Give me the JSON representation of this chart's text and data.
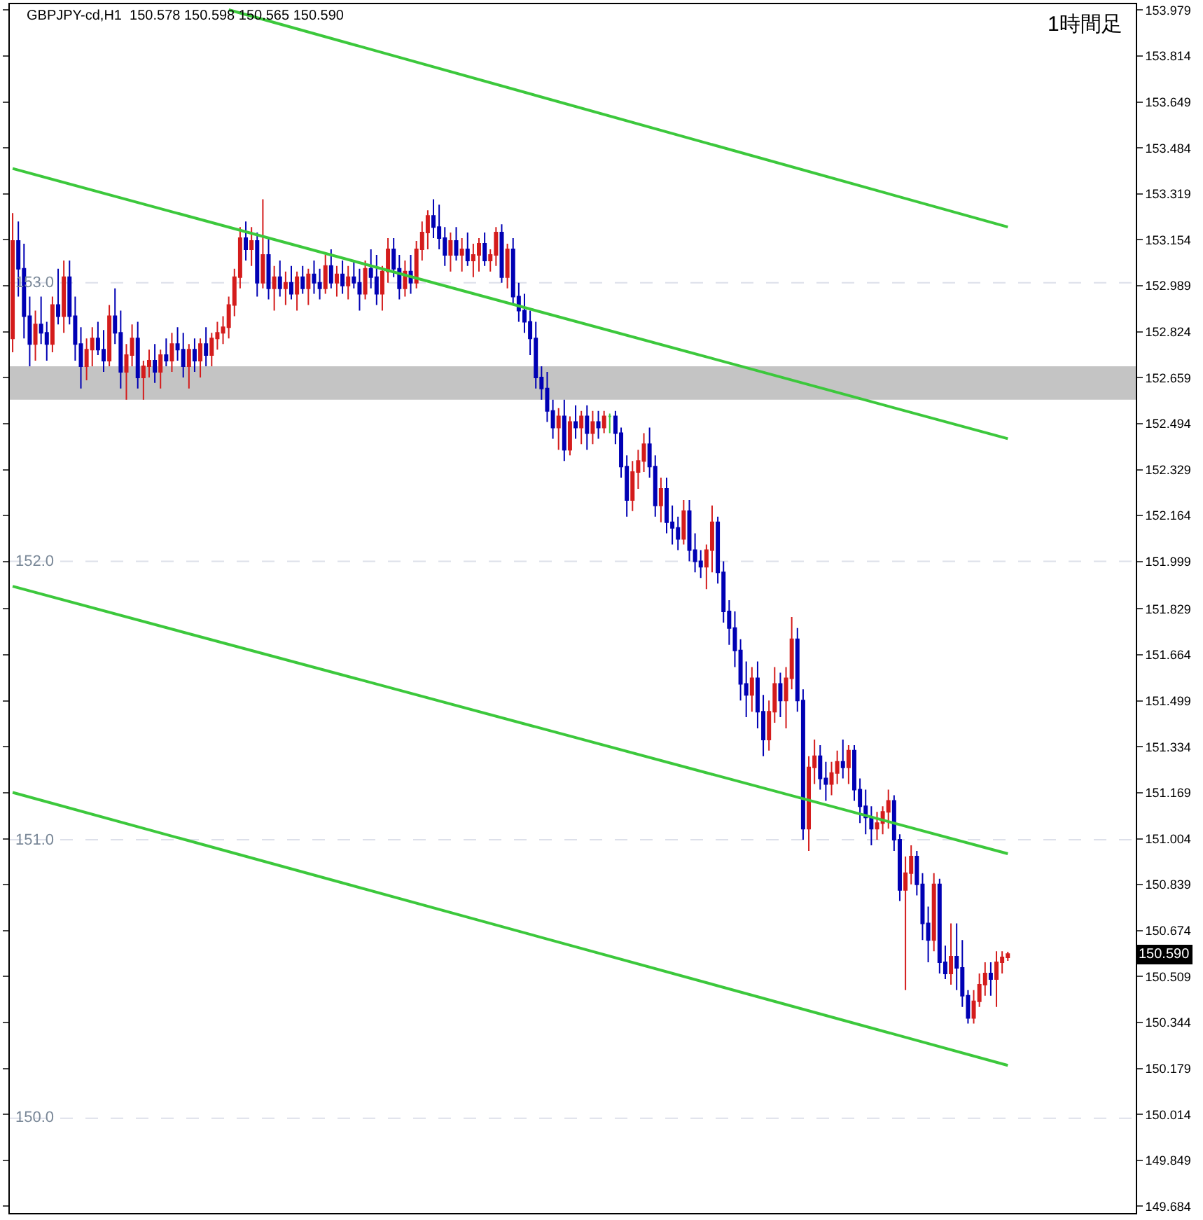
{
  "chart_data": {
    "type": "candlestick",
    "title": "GBPJPY-cd,H1  150.578 150.598 150.565 150.590",
    "subtitle": "1時間足",
    "categories": [
      null,
      null,
      null,
      null,
      null,
      null,
      null,
      null,
      null,
      null,
      null,
      null,
      null,
      null,
      null,
      null,
      null,
      null,
      null,
      null,
      null,
      null,
      null,
      null,
      null,
      null,
      null,
      null,
      null,
      null,
      null,
      null,
      null,
      null,
      null,
      null,
      null,
      null,
      null,
      null,
      null,
      null,
      null,
      null,
      null,
      null,
      null,
      null,
      null,
      null,
      null,
      null,
      null,
      null,
      null,
      null,
      null,
      null,
      null,
      null,
      null,
      null,
      null,
      null,
      null,
      null,
      null,
      null,
      null,
      null,
      null,
      null,
      null,
      null,
      null,
      null,
      null,
      null,
      null,
      null,
      null,
      null,
      null,
      null,
      null,
      null,
      null,
      null,
      null,
      null,
      null,
      null,
      null,
      null,
      null,
      null,
      null,
      null,
      null,
      null,
      null,
      null,
      null,
      null,
      null,
      null,
      null,
      null,
      null,
      null,
      null,
      null,
      null,
      null,
      null,
      null,
      null,
      null,
      null,
      null,
      null,
      null,
      null,
      null,
      null,
      null,
      null,
      null,
      null,
      null,
      null,
      null,
      null,
      null,
      null,
      null,
      null,
      null,
      null,
      null,
      null,
      null,
      null,
      null,
      null,
      null,
      null,
      null,
      null,
      null,
      null,
      null,
      null,
      null,
      null,
      null,
      null,
      null,
      null,
      null,
      null,
      null,
      null,
      null,
      null,
      null,
      null,
      null,
      null,
      null,
      null,
      null,
      null,
      null,
      null,
      null,
      null,
      null,
      null,
      null,
      null,
      null,
      null,
      null,
      null,
      null,
      null,
      null,
      null,
      null,
      null,
      null,
      null,
      null,
      null,
      null,
      null,
      null
    ],
    "ohlc": [
      [
        152.8,
        153.25,
        152.75,
        153.15
      ],
      [
        153.15,
        153.22,
        152.95,
        153.05
      ],
      [
        153.05,
        153.14,
        152.8,
        152.88
      ],
      [
        152.88,
        152.95,
        152.7,
        152.78
      ],
      [
        152.78,
        152.9,
        152.72,
        152.85
      ],
      [
        152.85,
        152.95,
        152.78,
        152.82
      ],
      [
        152.82,
        152.86,
        152.72,
        152.78
      ],
      [
        152.78,
        152.95,
        152.75,
        152.92
      ],
      [
        152.92,
        153.05,
        152.85,
        152.88
      ],
      [
        152.88,
        153.08,
        152.82,
        153.02
      ],
      [
        153.02,
        153.08,
        152.85,
        152.88
      ],
      [
        152.88,
        152.95,
        152.72,
        152.78
      ],
      [
        152.78,
        152.84,
        152.62,
        152.7
      ],
      [
        152.7,
        152.8,
        152.65,
        152.76
      ],
      [
        152.76,
        152.84,
        152.7,
        152.8
      ],
      [
        152.8,
        152.86,
        152.74,
        152.76
      ],
      [
        152.76,
        152.83,
        152.68,
        152.72
      ],
      [
        152.72,
        152.92,
        152.7,
        152.88
      ],
      [
        152.88,
        152.98,
        152.78,
        152.82
      ],
      [
        152.82,
        152.9,
        152.62,
        152.68
      ],
      [
        152.68,
        152.78,
        152.58,
        152.74
      ],
      [
        152.74,
        152.85,
        152.7,
        152.8
      ],
      [
        152.8,
        152.86,
        152.62,
        152.66
      ],
      [
        152.66,
        152.72,
        152.58,
        152.7
      ],
      [
        152.7,
        152.76,
        152.66,
        152.72
      ],
      [
        152.72,
        152.78,
        152.64,
        152.68
      ],
      [
        152.68,
        152.76,
        152.62,
        152.74
      ],
      [
        152.74,
        152.8,
        152.7,
        152.72
      ],
      [
        152.72,
        152.82,
        152.68,
        152.78
      ],
      [
        152.78,
        152.84,
        152.72,
        152.76
      ],
      [
        152.76,
        152.82,
        152.66,
        152.7
      ],
      [
        152.7,
        152.78,
        152.62,
        152.76
      ],
      [
        152.76,
        152.8,
        152.68,
        152.72
      ],
      [
        152.72,
        152.8,
        152.66,
        152.78
      ],
      [
        152.78,
        152.84,
        152.7,
        152.74
      ],
      [
        152.74,
        152.82,
        152.7,
        152.8
      ],
      [
        152.8,
        152.86,
        152.76,
        152.82
      ],
      [
        152.82,
        152.88,
        152.78,
        152.84
      ],
      [
        152.84,
        152.95,
        152.8,
        152.92
      ],
      [
        152.92,
        153.05,
        152.88,
        153.02
      ],
      [
        153.02,
        153.2,
        152.98,
        153.16
      ],
      [
        153.16,
        153.22,
        153.08,
        153.12
      ],
      [
        153.12,
        153.2,
        153.06,
        153.15
      ],
      [
        153.15,
        153.18,
        152.95,
        153.0
      ],
      [
        153.0,
        153.3,
        152.98,
        153.1
      ],
      [
        153.1,
        153.16,
        152.94,
        152.98
      ],
      [
        152.98,
        153.06,
        152.9,
        153.02
      ],
      [
        153.02,
        153.08,
        152.95,
        152.98
      ],
      [
        152.98,
        153.04,
        152.92,
        153.0
      ],
      [
        153.0,
        153.06,
        152.94,
        152.96
      ],
      [
        152.96,
        153.04,
        152.9,
        153.02
      ],
      [
        153.02,
        153.06,
        152.96,
        152.98
      ],
      [
        152.98,
        153.05,
        152.92,
        153.03
      ],
      [
        153.03,
        153.08,
        152.96,
        153.0
      ],
      [
        153.0,
        153.05,
        152.94,
        152.98
      ],
      [
        152.98,
        153.1,
        152.96,
        153.06
      ],
      [
        153.06,
        153.12,
        152.98,
        153.0
      ],
      [
        153.0,
        153.06,
        152.95,
        153.03
      ],
      [
        153.03,
        153.08,
        152.96,
        152.99
      ],
      [
        152.99,
        153.06,
        152.94,
        153.02
      ],
      [
        153.02,
        153.08,
        152.98,
        153.0
      ],
      [
        153.0,
        153.05,
        152.9,
        152.96
      ],
      [
        152.96,
        153.08,
        152.94,
        153.05
      ],
      [
        153.05,
        153.12,
        152.98,
        153.02
      ],
      [
        153.02,
        153.1,
        152.92,
        152.96
      ],
      [
        152.96,
        153.06,
        152.9,
        153.04
      ],
      [
        153.04,
        153.16,
        153.0,
        153.12
      ],
      [
        153.12,
        153.16,
        153.02,
        153.05
      ],
      [
        153.05,
        153.1,
        152.94,
        152.98
      ],
      [
        152.98,
        153.08,
        152.95,
        153.04
      ],
      [
        153.04,
        153.1,
        152.96,
        153.0
      ],
      [
        153.0,
        153.15,
        152.98,
        153.12
      ],
      [
        153.12,
        153.22,
        153.08,
        153.18
      ],
      [
        153.18,
        153.26,
        153.12,
        153.24
      ],
      [
        153.24,
        153.3,
        153.16,
        153.2
      ],
      [
        153.2,
        153.28,
        153.12,
        153.16
      ],
      [
        153.16,
        153.2,
        153.06,
        153.1
      ],
      [
        153.1,
        153.18,
        153.04,
        153.15
      ],
      [
        153.15,
        153.2,
        153.08,
        153.1
      ],
      [
        153.1,
        153.16,
        153.04,
        153.12
      ],
      [
        153.12,
        153.18,
        153.06,
        153.08
      ],
      [
        153.08,
        153.14,
        153.02,
        153.1
      ],
      [
        153.1,
        153.16,
        153.04,
        153.14
      ],
      [
        153.14,
        153.18,
        153.06,
        153.08
      ],
      [
        153.08,
        153.12,
        153.04,
        153.1
      ],
      [
        153.1,
        153.2,
        153.06,
        153.18
      ],
      [
        153.18,
        153.21,
        153.0,
        153.02
      ],
      [
        153.02,
        153.14,
        152.98,
        153.12
      ],
      [
        153.12,
        153.16,
        152.92,
        152.95
      ],
      [
        152.95,
        153.0,
        152.86,
        152.9
      ],
      [
        152.9,
        152.96,
        152.82,
        152.86
      ],
      [
        152.86,
        152.9,
        152.74,
        152.8
      ],
      [
        152.8,
        152.86,
        152.62,
        152.66
      ],
      [
        152.66,
        152.7,
        152.58,
        152.62
      ],
      [
        152.62,
        152.68,
        152.5,
        152.54
      ],
      [
        152.54,
        152.58,
        152.44,
        152.48
      ],
      [
        152.48,
        152.55,
        152.4,
        152.52
      ],
      [
        152.52,
        152.58,
        152.36,
        152.4
      ],
      [
        152.4,
        152.52,
        152.38,
        152.5
      ],
      [
        152.5,
        152.56,
        152.44,
        152.48
      ],
      [
        152.48,
        152.54,
        152.42,
        152.52
      ],
      [
        152.52,
        152.56,
        152.4,
        152.46
      ],
      [
        152.46,
        152.54,
        152.42,
        152.5
      ],
      [
        152.5,
        152.54,
        152.44,
        152.48
      ],
      [
        152.48,
        152.54,
        152.46,
        152.52
      ],
      [
        152.52,
        152.53,
        152.46,
        152.52
      ],
      [
        152.52,
        152.54,
        152.42,
        152.46
      ],
      [
        152.46,
        152.48,
        152.3,
        152.34
      ],
      [
        152.34,
        152.38,
        152.16,
        152.22
      ],
      [
        152.22,
        152.36,
        152.18,
        152.32
      ],
      [
        152.32,
        152.4,
        152.26,
        152.36
      ],
      [
        152.36,
        152.46,
        152.32,
        152.42
      ],
      [
        152.42,
        152.48,
        152.3,
        152.34
      ],
      [
        152.34,
        152.38,
        152.16,
        152.2
      ],
      [
        152.2,
        152.3,
        152.14,
        152.26
      ],
      [
        152.26,
        152.3,
        152.1,
        152.14
      ],
      [
        152.14,
        152.2,
        152.06,
        152.12
      ],
      [
        152.12,
        152.16,
        152.04,
        152.08
      ],
      [
        152.08,
        152.22,
        152.06,
        152.18
      ],
      [
        152.18,
        152.22,
        152.0,
        152.04
      ],
      [
        152.04,
        152.1,
        151.96,
        152.0
      ],
      [
        152.0,
        152.04,
        151.94,
        151.98
      ],
      [
        151.98,
        152.06,
        151.9,
        152.04
      ],
      [
        152.04,
        152.2,
        151.96,
        152.14
      ],
      [
        152.14,
        152.16,
        151.92,
        151.96
      ],
      [
        151.96,
        152.0,
        151.78,
        151.82
      ],
      [
        151.82,
        151.86,
        151.7,
        151.76
      ],
      [
        151.76,
        151.82,
        151.62,
        151.68
      ],
      [
        151.68,
        151.72,
        151.5,
        151.56
      ],
      [
        151.56,
        151.64,
        151.44,
        151.52
      ],
      [
        151.52,
        151.62,
        151.46,
        151.58
      ],
      [
        151.58,
        151.64,
        151.4,
        151.46
      ],
      [
        151.46,
        151.52,
        151.3,
        151.36
      ],
      [
        151.36,
        151.5,
        151.32,
        151.46
      ],
      [
        151.46,
        151.62,
        151.42,
        151.56
      ],
      [
        151.56,
        151.6,
        151.44,
        151.5
      ],
      [
        151.5,
        151.62,
        151.4,
        151.58
      ],
      [
        151.58,
        151.8,
        151.54,
        151.72
      ],
      [
        151.72,
        151.76,
        151.46,
        151.5
      ],
      [
        151.5,
        151.54,
        151.0,
        151.04
      ],
      [
        151.04,
        151.3,
        150.96,
        151.26
      ],
      [
        151.26,
        151.36,
        151.2,
        151.3
      ],
      [
        151.3,
        151.34,
        151.18,
        151.22
      ],
      [
        151.22,
        151.28,
        151.14,
        151.2
      ],
      [
        151.2,
        151.28,
        151.16,
        151.24
      ],
      [
        151.24,
        151.32,
        151.2,
        151.28
      ],
      [
        151.28,
        151.36,
        151.22,
        151.26
      ],
      [
        151.26,
        151.34,
        151.2,
        151.32
      ],
      [
        151.32,
        151.34,
        151.14,
        151.18
      ],
      [
        151.18,
        151.22,
        151.06,
        151.12
      ],
      [
        151.12,
        151.18,
        151.02,
        151.08
      ],
      [
        151.08,
        151.12,
        150.98,
        151.04
      ],
      [
        151.04,
        151.1,
        151.0,
        151.06
      ],
      [
        151.06,
        151.12,
        151.02,
        151.1
      ],
      [
        151.1,
        151.18,
        151.04,
        151.14
      ],
      [
        151.14,
        151.16,
        150.96,
        151.0
      ],
      [
        151.0,
        151.02,
        150.78,
        150.82
      ],
      [
        150.82,
        150.94,
        150.46,
        150.88
      ],
      [
        150.88,
        150.98,
        150.84,
        150.94
      ],
      [
        150.94,
        150.96,
        150.8,
        150.84
      ],
      [
        150.84,
        150.88,
        150.64,
        150.7
      ],
      [
        150.7,
        150.76,
        150.56,
        150.64
      ],
      [
        150.64,
        150.88,
        150.6,
        150.84
      ],
      [
        150.84,
        150.86,
        150.52,
        150.56
      ],
      [
        150.56,
        150.62,
        150.5,
        150.52
      ],
      [
        150.52,
        150.7,
        150.48,
        150.58
      ],
      [
        150.58,
        150.7,
        150.46,
        150.54
      ],
      [
        150.54,
        150.64,
        150.4,
        150.44
      ],
      [
        150.44,
        150.46,
        150.34,
        150.36
      ],
      [
        150.36,
        150.46,
        150.34,
        150.42
      ],
      [
        150.42,
        150.52,
        150.4,
        150.48
      ],
      [
        150.48,
        150.56,
        150.44,
        150.52
      ],
      [
        150.52,
        150.56,
        150.44,
        150.5
      ],
      [
        150.5,
        150.6,
        150.4,
        150.56
      ],
      [
        150.56,
        150.6,
        150.52,
        150.578
      ],
      [
        150.578,
        150.598,
        150.565,
        150.59
      ],
      null,
      null,
      null,
      null,
      null,
      null,
      null,
      null,
      null,
      null,
      null,
      null,
      null,
      null,
      null,
      null,
      null,
      null,
      null,
      null,
      null,
      null
    ],
    "colors": [
      "#d41c1c",
      "#0000b4",
      "#0000b4",
      "#0000b4",
      "#d41c1c",
      "#0000b4",
      "#0000b4",
      "#d41c1c",
      "#0000b4",
      "#d41c1c",
      "#0000b4",
      "#0000b4",
      "#0000b4",
      "#d41c1c",
      "#d41c1c",
      "#0000b4",
      "#0000b4",
      "#d41c1c",
      "#0000b4",
      "#0000b4",
      "#d41c1c",
      "#d41c1c",
      "#0000b4",
      "#d41c1c",
      "#d41c1c",
      "#0000b4",
      "#d41c1c",
      "#0000b4",
      "#d41c1c",
      "#0000b4",
      "#0000b4",
      "#d41c1c",
      "#0000b4",
      "#d41c1c",
      "#0000b4",
      "#d41c1c",
      "#d41c1c",
      "#d41c1c",
      "#d41c1c",
      "#d41c1c",
      "#d41c1c",
      "#0000b4",
      "#d41c1c",
      "#0000b4",
      "#d41c1c",
      "#0000b4",
      "#d41c1c",
      "#0000b4",
      "#d41c1c",
      "#0000b4",
      "#d41c1c",
      "#0000b4",
      "#d41c1c",
      "#0000b4",
      "#0000b4",
      "#d41c1c",
      "#0000b4",
      "#d41c1c",
      "#0000b4",
      "#d41c1c",
      "#0000b4",
      "#0000b4",
      "#d41c1c",
      "#0000b4",
      "#0000b4",
      "#d41c1c",
      "#d41c1c",
      "#0000b4",
      "#0000b4",
      "#d41c1c",
      "#0000b4",
      "#d41c1c",
      "#d41c1c",
      "#d41c1c",
      "#0000b4",
      "#0000b4",
      "#0000b4",
      "#d41c1c",
      "#0000b4",
      "#d41c1c",
      "#0000b4",
      "#d41c1c",
      "#d41c1c",
      "#0000b4",
      "#d41c1c",
      "#d41c1c",
      "#0000b4",
      "#d41c1c",
      "#0000b4",
      "#0000b4",
      "#0000b4",
      "#0000b4",
      "#0000b4",
      "#0000b4",
      "#0000b4",
      "#0000b4",
      "#d41c1c",
      "#0000b4",
      "#d41c1c",
      "#0000b4",
      "#d41c1c",
      "#0000b4",
      "#d41c1c",
      "#0000b4",
      "#d41c1c",
      "#3cc83c",
      "#0000b4",
      "#0000b4",
      "#0000b4",
      "#d41c1c",
      "#d41c1c",
      "#d41c1c",
      "#0000b4",
      "#0000b4",
      "#d41c1c",
      "#0000b4",
      "#0000b4",
      "#0000b4",
      "#d41c1c",
      "#0000b4",
      "#0000b4",
      "#0000b4",
      "#d41c1c",
      "#d41c1c",
      "#0000b4",
      "#0000b4",
      "#0000b4",
      "#0000b4",
      "#0000b4",
      "#0000b4",
      "#d41c1c",
      "#0000b4",
      "#0000b4",
      "#d41c1c",
      "#d41c1c",
      "#0000b4",
      "#d41c1c",
      "#d41c1c",
      "#0000b4",
      "#0000b4",
      "#d41c1c",
      "#d41c1c",
      "#0000b4",
      "#0000b4",
      "#d41c1c",
      "#d41c1c",
      "#0000b4",
      "#d41c1c",
      "#0000b4",
      "#0000b4",
      "#0000b4",
      "#0000b4",
      "#d41c1c",
      "#d41c1c",
      "#d41c1c",
      "#0000b4",
      "#0000b4",
      "#d41c1c",
      "#d41c1c",
      "#0000b4",
      "#0000b4",
      "#0000b4",
      "#d41c1c",
      "#0000b4",
      "#0000b4",
      "#d41c1c",
      "#0000b4",
      "#0000b4",
      "#0000b4",
      "#d41c1c",
      "#d41c1c",
      "#d41c1c",
      "#0000b4",
      "#d41c1c",
      "#d41c1c",
      "#d41c1c",
      null,
      null,
      null,
      null,
      null,
      null,
      null,
      null,
      null,
      null,
      null,
      null,
      null,
      null,
      null,
      null,
      null,
      null,
      null,
      null,
      null,
      null
    ],
    "series": [
      {
        "type": "line",
        "color": "#3cc83c",
        "values": [
          null,
          null,
          null,
          null,
          null,
          null,
          null,
          null,
          null,
          null,
          null,
          null,
          null,
          null,
          null,
          null,
          null,
          null,
          null,
          null,
          null,
          null,
          null,
          null,
          null,
          null,
          null,
          null,
          null,
          null,
          null,
          null,
          null,
          null,
          null,
          null,
          null,
          null,
          153.98,
          null,
          null,
          null,
          null,
          null,
          null,
          null,
          null,
          null,
          null,
          null,
          null,
          null,
          null,
          null,
          null,
          null,
          null,
          null,
          null,
          null,
          null,
          null,
          null,
          null,
          null,
          null,
          null,
          null,
          null,
          null,
          null,
          null,
          null,
          null,
          null,
          null,
          null,
          null,
          null,
          null,
          null,
          null,
          null,
          null,
          null,
          null,
          null,
          null,
          null,
          null,
          null,
          null,
          null,
          null,
          null,
          null,
          null,
          null,
          null,
          null,
          null,
          null,
          null,
          null,
          null,
          null,
          null,
          null,
          null,
          null,
          null,
          null,
          null,
          null,
          null,
          null,
          null,
          null,
          null,
          null,
          null,
          null,
          null,
          null,
          null,
          null,
          null,
          null,
          null,
          null,
          null,
          null,
          null,
          null,
          null,
          null,
          null,
          null,
          null,
          null,
          null,
          null,
          null,
          null,
          null,
          null,
          null,
          null,
          null,
          null,
          null,
          null,
          null,
          null,
          null,
          null,
          null,
          null,
          null,
          null,
          null,
          null,
          null,
          null,
          null,
          null,
          null,
          null,
          null,
          null,
          null,
          null,
          null,
          null,
          null,
          153.2,
          null,
          null,
          null,
          null,
          null,
          null,
          null,
          null,
          null,
          null,
          null,
          null,
          null,
          null,
          null,
          null,
          null,
          null,
          null,
          null,
          null,
          null
        ]
      },
      {
        "type": "line",
        "color": "#3cc83c",
        "values": [
          153.41,
          null,
          null,
          null,
          null,
          null,
          null,
          null,
          null,
          null,
          null,
          null,
          null,
          null,
          null,
          null,
          null,
          null,
          null,
          null,
          null,
          null,
          null,
          null,
          null,
          null,
          null,
          null,
          null,
          null,
          null,
          null,
          null,
          null,
          null,
          null,
          null,
          null,
          null,
          null,
          null,
          null,
          null,
          null,
          null,
          null,
          null,
          null,
          null,
          null,
          null,
          null,
          null,
          null,
          null,
          null,
          null,
          null,
          null,
          null,
          null,
          null,
          null,
          null,
          null,
          null,
          null,
          null,
          null,
          null,
          null,
          null,
          null,
          null,
          null,
          null,
          null,
          null,
          null,
          null,
          null,
          null,
          null,
          null,
          null,
          null,
          null,
          null,
          null,
          null,
          null,
          null,
          null,
          null,
          null,
          null,
          null,
          null,
          null,
          null,
          null,
          null,
          null,
          null,
          null,
          null,
          null,
          null,
          null,
          null,
          null,
          null,
          null,
          null,
          null,
          null,
          null,
          null,
          null,
          null,
          null,
          null,
          null,
          null,
          null,
          null,
          null,
          null,
          null,
          null,
          null,
          null,
          null,
          null,
          null,
          null,
          null,
          null,
          null,
          null,
          null,
          null,
          null,
          null,
          null,
          null,
          null,
          null,
          null,
          null,
          null,
          null,
          null,
          null,
          null,
          null,
          null,
          null,
          null,
          null,
          null,
          null,
          null,
          null,
          null,
          null,
          null,
          null,
          null,
          null,
          null,
          null,
          null,
          null,
          null,
          152.44,
          null,
          null,
          null,
          null,
          null,
          null,
          null,
          null,
          null,
          null,
          null,
          null,
          null,
          null,
          null,
          null,
          null,
          null,
          null,
          null,
          null,
          null
        ]
      },
      {
        "type": "line",
        "color": "#3cc83c",
        "values": [
          151.91,
          null,
          null,
          null,
          null,
          null,
          null,
          null,
          null,
          null,
          null,
          null,
          null,
          null,
          null,
          null,
          null,
          null,
          null,
          null,
          null,
          null,
          null,
          null,
          null,
          null,
          null,
          null,
          null,
          null,
          null,
          null,
          null,
          null,
          null,
          null,
          null,
          null,
          null,
          null,
          null,
          null,
          null,
          null,
          null,
          null,
          null,
          null,
          null,
          null,
          null,
          null,
          null,
          null,
          null,
          null,
          null,
          null,
          null,
          null,
          null,
          null,
          null,
          null,
          null,
          null,
          null,
          null,
          null,
          null,
          null,
          null,
          null,
          null,
          null,
          null,
          null,
          null,
          null,
          null,
          null,
          null,
          null,
          null,
          null,
          null,
          null,
          null,
          null,
          null,
          null,
          null,
          null,
          null,
          null,
          null,
          null,
          null,
          null,
          null,
          null,
          null,
          null,
          null,
          null,
          null,
          null,
          null,
          null,
          null,
          null,
          null,
          null,
          null,
          null,
          null,
          null,
          null,
          null,
          null,
          null,
          null,
          null,
          null,
          null,
          null,
          null,
          null,
          null,
          null,
          null,
          null,
          null,
          null,
          null,
          null,
          null,
          null,
          null,
          null,
          null,
          null,
          null,
          null,
          null,
          null,
          null,
          null,
          null,
          null,
          null,
          null,
          null,
          null,
          null,
          null,
          null,
          null,
          null,
          null,
          null,
          null,
          null,
          null,
          null,
          null,
          null,
          null,
          null,
          null,
          null,
          null,
          null,
          null,
          null,
          150.95,
          null,
          null,
          null,
          null,
          null,
          null,
          null,
          null,
          null,
          null,
          null,
          null,
          null,
          null,
          null,
          null,
          null,
          null,
          null,
          null,
          null,
          null
        ]
      },
      {
        "type": "line",
        "color": "#3cc83c",
        "values": [
          151.17,
          null,
          null,
          null,
          null,
          null,
          null,
          null,
          null,
          null,
          null,
          null,
          null,
          null,
          null,
          null,
          null,
          null,
          null,
          null,
          null,
          null,
          null,
          null,
          null,
          null,
          null,
          null,
          null,
          null,
          null,
          null,
          null,
          null,
          null,
          null,
          null,
          null,
          null,
          null,
          null,
          null,
          null,
          null,
          null,
          null,
          null,
          null,
          null,
          null,
          null,
          null,
          null,
          null,
          null,
          null,
          null,
          null,
          null,
          null,
          null,
          null,
          null,
          null,
          null,
          null,
          null,
          null,
          null,
          null,
          null,
          null,
          null,
          null,
          null,
          null,
          null,
          null,
          null,
          null,
          null,
          null,
          null,
          null,
          null,
          null,
          null,
          null,
          null,
          null,
          null,
          null,
          null,
          null,
          null,
          null,
          null,
          null,
          null,
          null,
          null,
          null,
          null,
          null,
          null,
          null,
          null,
          null,
          null,
          null,
          null,
          null,
          null,
          null,
          null,
          null,
          null,
          null,
          null,
          null,
          null,
          null,
          null,
          null,
          null,
          null,
          null,
          null,
          null,
          null,
          null,
          null,
          null,
          null,
          null,
          null,
          null,
          null,
          null,
          null,
          null,
          null,
          null,
          null,
          null,
          null,
          null,
          null,
          null,
          null,
          null,
          null,
          null,
          null,
          null,
          null,
          null,
          null,
          null,
          null,
          null,
          null,
          null,
          null,
          null,
          null,
          null,
          null,
          null,
          null,
          null,
          null,
          null,
          null,
          null,
          150.19,
          null,
          null,
          null,
          null,
          null,
          null,
          null,
          null,
          null,
          null,
          null,
          null,
          null,
          null,
          null,
          null,
          null,
          null,
          null,
          null,
          null,
          null
        ]
      }
    ],
    "ref_lines": [
      {
        "axis": "y",
        "value": 153,
        "label": "153.0",
        "color": "#dde0ea",
        "line_style": "dashed"
      },
      {
        "axis": "y",
        "value": 152,
        "label": "152.0",
        "color": "#dde0ea",
        "line_style": "dashed"
      },
      {
        "axis": "y",
        "value": 151,
        "label": "151.0",
        "color": "#dde0ea",
        "line_style": "dashed"
      },
      {
        "axis": "y",
        "value": 150,
        "label": "150.0",
        "color": "#dde0ea",
        "line_style": "dashed"
      }
    ],
    "bands": [
      {
        "axis": "y",
        "from": 152.58,
        "to": 152.7,
        "color": "#c4c4c4"
      }
    ],
    "annotations": [
      {
        "text": "150.590",
        "y": 150.59
      }
    ],
    "ylim": [
      149.66,
      154.0
    ],
    "yticks": [
      153.979,
      153.814,
      153.649,
      153.484,
      153.319,
      153.154,
      152.989,
      152.824,
      152.659,
      152.494,
      152.329,
      152.164,
      151.999,
      151.829,
      151.664,
      151.499,
      151.334,
      151.169,
      151.004,
      150.839,
      150.674,
      150.509,
      150.344,
      150.179,
      150.014,
      149.849,
      149.684
    ],
    "grid": false
  }
}
